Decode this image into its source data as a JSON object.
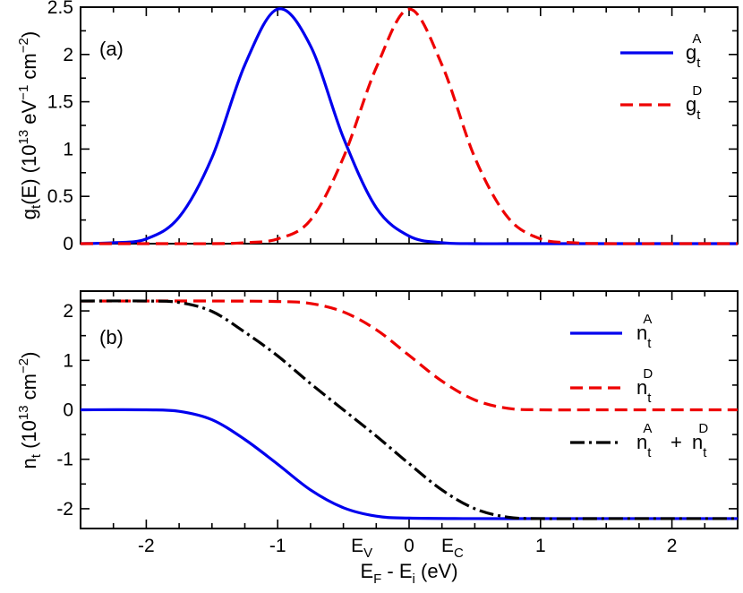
{
  "chart_data": [
    {
      "type": "line",
      "panel_label": "(a)",
      "ylabel": "g_t(E) (10^13 eV^-1 cm^-2)",
      "xlim": [
        -2.5,
        2.5
      ],
      "ylim": [
        0,
        2.5
      ],
      "yticks": [
        0,
        0.5,
        1,
        1.5,
        2,
        2.5
      ],
      "ytick_labels": [
        "0",
        "0.5",
        "1",
        "1.5",
        "2",
        "2.5"
      ],
      "legend_position": "top-right",
      "series": [
        {
          "name": "g_t^A",
          "legend_main": "g",
          "legend_sub": "t",
          "legend_sup": "A",
          "color": "#0000ee",
          "style": "solid",
          "x": [
            -2.5,
            -2.25,
            -2.0,
            -1.75,
            -1.5,
            -1.25,
            -1.0,
            -0.75,
            -0.5,
            -0.25,
            0.0,
            0.25,
            0.5,
            0.75,
            1.0,
            1.5,
            2.0,
            2.5
          ],
          "values": [
            0.0,
            0.01,
            0.05,
            0.28,
            0.91,
            1.89,
            2.48,
            2.09,
            1.12,
            0.38,
            0.08,
            0.01,
            0.0,
            0.0,
            0.0,
            0.0,
            0.0,
            0.0
          ]
        },
        {
          "name": "g_t^D",
          "legend_main": "g",
          "legend_sub": "t",
          "legend_sup": "D",
          "color": "#ee0000",
          "style": "dashed",
          "x": [
            -2.5,
            -2.0,
            -1.5,
            -1.25,
            -1.0,
            -0.75,
            -0.5,
            -0.25,
            0.0,
            0.25,
            0.5,
            0.75,
            1.0,
            1.25,
            1.5,
            2.0,
            2.5
          ],
          "values": [
            0.0,
            0.0,
            0.0,
            0.01,
            0.05,
            0.25,
            0.91,
            1.86,
            2.48,
            1.89,
            0.91,
            0.28,
            0.05,
            0.01,
            0.0,
            0.0,
            0.0
          ]
        }
      ]
    },
    {
      "type": "line",
      "panel_label": "(b)",
      "ylabel": "n_t (10^13 cm^-2)",
      "xlabel": "E_F - E_i (eV)",
      "xlim": [
        -2.5,
        2.5
      ],
      "ylim": [
        -2.4,
        2.4
      ],
      "yticks": [
        -2,
        -1,
        0,
        1,
        2
      ],
      "ytick_labels": [
        "-2",
        "-1",
        "0",
        "1",
        "2"
      ],
      "xticks": [
        -2,
        -1,
        0,
        1,
        2
      ],
      "xtick_labels": [
        "-2",
        "-1",
        "0",
        "1",
        "2"
      ],
      "energy_markers": [
        {
          "main": "E",
          "sub": "V",
          "x": -0.36
        },
        {
          "main": "E",
          "sub": "C",
          "x": 0.33
        }
      ],
      "legend_position": "right",
      "series": [
        {
          "name": "n_t^A",
          "legend_parts": [
            {
              "main": "n",
              "sub": "t",
              "sup": "A"
            }
          ],
          "color": "#0000ee",
          "style": "solid",
          "x": [
            -2.5,
            -2.0,
            -1.75,
            -1.5,
            -1.25,
            -1.0,
            -0.75,
            -0.5,
            -0.25,
            0.0,
            0.5,
            1.0,
            1.5,
            2.0,
            2.5
          ],
          "values": [
            0.0,
            0.0,
            -0.03,
            -0.2,
            -0.6,
            -1.1,
            -1.62,
            -1.98,
            -2.15,
            -2.19,
            -2.2,
            -2.2,
            -2.2,
            -2.2,
            -2.2
          ]
        },
        {
          "name": "n_t^D",
          "legend_parts": [
            {
              "main": "n",
              "sub": "t",
              "sup": "D"
            }
          ],
          "color": "#ee0000",
          "style": "dashed",
          "x": [
            -2.5,
            -2.0,
            -1.5,
            -1.0,
            -0.75,
            -0.5,
            -0.25,
            0.0,
            0.25,
            0.5,
            0.75,
            1.0,
            1.5,
            2.0,
            2.5
          ],
          "values": [
            2.2,
            2.2,
            2.2,
            2.19,
            2.15,
            1.98,
            1.62,
            1.1,
            0.58,
            0.2,
            0.03,
            0.0,
            0.0,
            0.0,
            0.0
          ]
        },
        {
          "name": "n_t^A + n_t^D",
          "legend_parts": [
            {
              "main": "n",
              "sub": "t",
              "sup": "A"
            },
            {
              "op": "+"
            },
            {
              "main": "n",
              "sub": "t",
              "sup": "D"
            }
          ],
          "color": "#000000",
          "style": "dashdot",
          "x": [
            -2.5,
            -2.0,
            -1.75,
            -1.5,
            -1.25,
            -1.0,
            -0.75,
            -0.5,
            -0.25,
            0.0,
            0.25,
            0.5,
            0.75,
            1.0,
            1.5,
            2.0,
            2.5
          ],
          "values": [
            2.2,
            2.2,
            2.17,
            1.99,
            1.57,
            1.09,
            0.53,
            0.0,
            -0.53,
            -1.09,
            -1.62,
            -2.0,
            -2.17,
            -2.2,
            -2.2,
            -2.2,
            -2.2
          ]
        }
      ]
    }
  ]
}
